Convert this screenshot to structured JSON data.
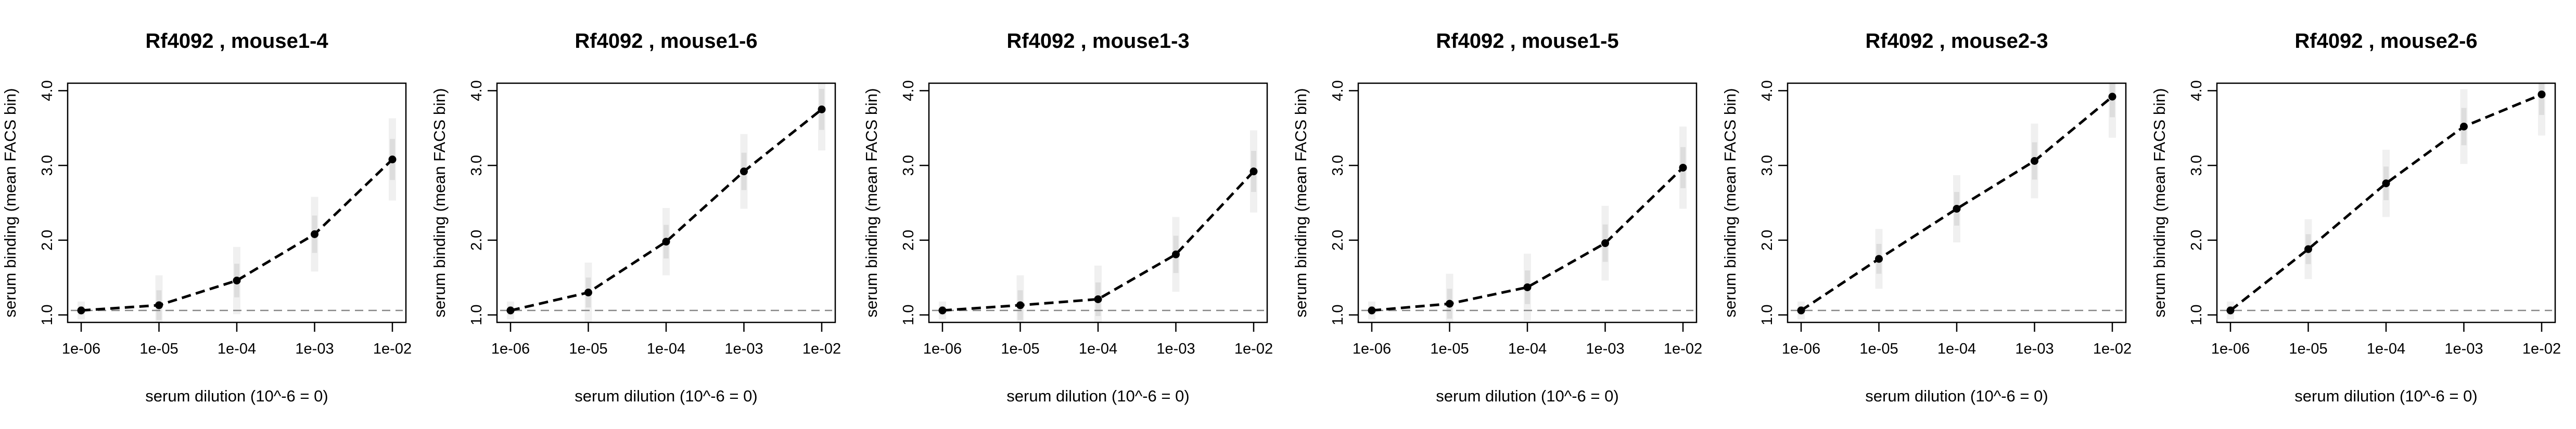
{
  "chart_data": [
    {
      "type": "line",
      "title": "Rf4092 , mouse1-4",
      "xlabel": "serum dilution (10^-6 = 0)",
      "ylabel": "serum binding (mean FACS bin)",
      "x_tick_labels": [
        "1e-06",
        "1e-05",
        "1e-04",
        "1e-03",
        "1e-02"
      ],
      "y_tick_labels": [
        "1.0",
        "2.0",
        "3.0",
        "4.0"
      ],
      "ylim": [
        0.9,
        4.1
      ],
      "x_scale": "log",
      "baseline": 1.06,
      "series": [
        {
          "x": [
            "1e-06",
            "1e-05",
            "1e-04",
            "1e-03",
            "1e-02"
          ],
          "values": [
            1.06,
            1.13,
            1.46,
            2.08,
            3.08
          ]
        }
      ]
    },
    {
      "type": "line",
      "title": "Rf4092 , mouse1-6",
      "xlabel": "serum dilution (10^-6 = 0)",
      "ylabel": "serum binding (mean FACS bin)",
      "x_tick_labels": [
        "1e-06",
        "1e-05",
        "1e-04",
        "1e-03",
        "1e-02"
      ],
      "y_tick_labels": [
        "1.0",
        "2.0",
        "3.0",
        "4.0"
      ],
      "ylim": [
        0.9,
        4.1
      ],
      "x_scale": "log",
      "baseline": 1.06,
      "series": [
        {
          "x": [
            "1e-06",
            "1e-05",
            "1e-04",
            "1e-03",
            "1e-02"
          ],
          "values": [
            1.06,
            1.3,
            1.98,
            2.92,
            3.75
          ]
        }
      ]
    },
    {
      "type": "line",
      "title": "Rf4092 , mouse1-3",
      "xlabel": "serum dilution (10^-6 = 0)",
      "ylabel": "serum binding (mean FACS bin)",
      "x_tick_labels": [
        "1e-06",
        "1e-05",
        "1e-04",
        "1e-03",
        "1e-02"
      ],
      "y_tick_labels": [
        "1.0",
        "2.0",
        "3.0",
        "4.0"
      ],
      "ylim": [
        0.9,
        4.1
      ],
      "x_scale": "log",
      "baseline": 1.06,
      "series": [
        {
          "x": [
            "1e-06",
            "1e-05",
            "1e-04",
            "1e-03",
            "1e-02"
          ],
          "values": [
            1.06,
            1.13,
            1.21,
            1.81,
            2.92
          ]
        }
      ]
    },
    {
      "type": "line",
      "title": "Rf4092 , mouse1-5",
      "xlabel": "serum dilution (10^-6 = 0)",
      "ylabel": "serum binding (mean FACS bin)",
      "x_tick_labels": [
        "1e-06",
        "1e-05",
        "1e-04",
        "1e-03",
        "1e-02"
      ],
      "y_tick_labels": [
        "1.0",
        "2.0",
        "3.0",
        "4.0"
      ],
      "ylim": [
        0.9,
        4.1
      ],
      "x_scale": "log",
      "baseline": 1.06,
      "series": [
        {
          "x": [
            "1e-06",
            "1e-05",
            "1e-04",
            "1e-03",
            "1e-02"
          ],
          "values": [
            1.06,
            1.15,
            1.37,
            1.96,
            2.97
          ]
        }
      ]
    },
    {
      "type": "line",
      "title": "Rf4092 , mouse2-3",
      "xlabel": "serum dilution (10^-6 = 0)",
      "ylabel": "serum binding (mean FACS bin)",
      "x_tick_labels": [
        "1e-06",
        "1e-05",
        "1e-04",
        "1e-03",
        "1e-02"
      ],
      "y_tick_labels": [
        "1.0",
        "2.0",
        "3.0",
        "4.0"
      ],
      "ylim": [
        0.9,
        4.1
      ],
      "x_scale": "log",
      "baseline": 1.06,
      "series": [
        {
          "x": [
            "1e-06",
            "1e-05",
            "1e-04",
            "1e-03",
            "1e-02"
          ],
          "values": [
            1.06,
            1.75,
            2.42,
            3.06,
            3.92
          ]
        }
      ]
    },
    {
      "type": "line",
      "title": "Rf4092 , mouse2-6",
      "xlabel": "serum dilution (10^-6 = 0)",
      "ylabel": "serum binding (mean FACS bin)",
      "x_tick_labels": [
        "1e-06",
        "1e-05",
        "1e-04",
        "1e-03",
        "1e-02"
      ],
      "y_tick_labels": [
        "1.0",
        "2.0",
        "3.0",
        "4.0"
      ],
      "ylim": [
        0.9,
        4.1
      ],
      "x_scale": "log",
      "baseline": 1.06,
      "series": [
        {
          "x": [
            "1e-06",
            "1e-05",
            "1e-04",
            "1e-03",
            "1e-02"
          ],
          "values": [
            1.06,
            1.88,
            2.76,
            3.52,
            3.95
          ]
        }
      ]
    }
  ]
}
